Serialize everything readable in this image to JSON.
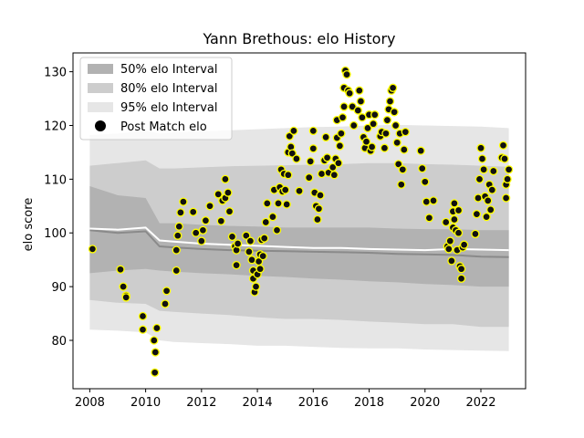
{
  "chart_data": {
    "type": "scatter",
    "title": "Yann Brethous: elo History",
    "xlabel": "",
    "ylabel": "elo score",
    "xlim": [
      2007.4,
      2023.6
    ],
    "ylim": [
      71,
      133.5
    ],
    "xticks": [
      2008,
      2010,
      2012,
      2014,
      2016,
      2018,
      2020,
      2022
    ],
    "yticks": [
      80,
      90,
      100,
      110,
      120,
      130
    ],
    "legend_position": "upper-left",
    "legend": [
      {
        "key": "band50",
        "label": "50% elo Interval",
        "color": "#b2b2b2"
      },
      {
        "key": "band80",
        "label": "80% elo Interval",
        "color": "#cdcdcd"
      },
      {
        "key": "band95",
        "label": "95% elo Interval",
        "color": "#e6e6e6"
      },
      {
        "key": "points",
        "label": "Post Match elo",
        "color": "#000000"
      }
    ],
    "colors": {
      "band50": "#b2b2b2",
      "band80": "#cdcdcd",
      "band95": "#e6e6e6",
      "median_line": "#8a8a8a",
      "mean_line": "#ffffff",
      "point_edge": "#ffff00",
      "point_fill": "#111111"
    },
    "bands": {
      "x": [
        2008,
        2009,
        2010,
        2010.5,
        2011,
        2012,
        2013,
        2014,
        2015,
        2016,
        2017,
        2018,
        2019,
        2020,
        2021,
        2022,
        2023
      ],
      "center": [
        100.5,
        100.0,
        100.3,
        97.5,
        97.3,
        97.0,
        96.8,
        96.7,
        96.6,
        96.5,
        96.4,
        96.3,
        96.1,
        96.0,
        95.9,
        95.6,
        95.5
      ],
      "mean": [
        100.8,
        100.6,
        101.0,
        98.6,
        98.4,
        98.0,
        97.8,
        97.6,
        97.4,
        97.2,
        97.2,
        97.0,
        96.9,
        96.8,
        97.0,
        96.9,
        96.8
      ],
      "band50_low": [
        92.5,
        93.0,
        93.3,
        93.0,
        92.8,
        92.5,
        92.3,
        92.0,
        91.8,
        91.5,
        91.3,
        91.0,
        90.8,
        90.5,
        90.3,
        90.0,
        90.0
      ],
      "band50_high": [
        108.7,
        107.0,
        106.5,
        101.8,
        101.8,
        101.5,
        101.3,
        101.2,
        101.0,
        101.0,
        101.0,
        101.0,
        100.8,
        100.7,
        100.7,
        100.5,
        100.5
      ],
      "band80_low": [
        87.5,
        87.0,
        86.8,
        85.5,
        85.3,
        85.0,
        84.7,
        84.3,
        84.0,
        84.0,
        83.8,
        83.5,
        83.3,
        83.0,
        83.0,
        82.5,
        82.5
      ],
      "band80_high": [
        112.5,
        113.0,
        113.5,
        112.0,
        112.0,
        112.2,
        112.4,
        112.5,
        112.6,
        112.7,
        112.8,
        113.0,
        113.0,
        112.8,
        112.7,
        112.5,
        112.3
      ],
      "band95_low": [
        82.0,
        81.8,
        81.5,
        80.0,
        79.7,
        79.5,
        79.3,
        79.0,
        79.0,
        78.8,
        78.6,
        78.5,
        78.5,
        78.3,
        78.2,
        78.1,
        78.0
      ],
      "band95_high": [
        118.2,
        118.5,
        119.0,
        118.5,
        118.7,
        118.9,
        119.1,
        119.3,
        119.5,
        119.7,
        119.8,
        120.0,
        120.1,
        120.0,
        119.9,
        119.8,
        119.5
      ]
    },
    "points": [
      {
        "x": 2008.1,
        "y": 97.0
      },
      {
        "x": 2009.1,
        "y": 93.2
      },
      {
        "x": 2009.2,
        "y": 90.0
      },
      {
        "x": 2009.3,
        "y": 88.3
      },
      {
        "x": 2009.3,
        "y": 88.0
      },
      {
        "x": 2009.9,
        "y": 84.5
      },
      {
        "x": 2009.9,
        "y": 82.0
      },
      {
        "x": 2010.3,
        "y": 80.0
      },
      {
        "x": 2010.35,
        "y": 77.8
      },
      {
        "x": 2010.4,
        "y": 82.3
      },
      {
        "x": 2010.33,
        "y": 74.0
      },
      {
        "x": 2010.7,
        "y": 86.8
      },
      {
        "x": 2010.75,
        "y": 89.2
      },
      {
        "x": 2011.1,
        "y": 93.0
      },
      {
        "x": 2011.1,
        "y": 96.8
      },
      {
        "x": 2011.15,
        "y": 99.5
      },
      {
        "x": 2011.2,
        "y": 101.2
      },
      {
        "x": 2011.25,
        "y": 103.8
      },
      {
        "x": 2011.35,
        "y": 105.8
      },
      {
        "x": 2011.7,
        "y": 103.9
      },
      {
        "x": 2011.8,
        "y": 100.0
      },
      {
        "x": 2012.0,
        "y": 98.5
      },
      {
        "x": 2012.05,
        "y": 100.5
      },
      {
        "x": 2012.15,
        "y": 102.3
      },
      {
        "x": 2012.3,
        "y": 105.0
      },
      {
        "x": 2012.6,
        "y": 107.2
      },
      {
        "x": 2012.7,
        "y": 102.2
      },
      {
        "x": 2012.75,
        "y": 106.0
      },
      {
        "x": 2012.85,
        "y": 110.0
      },
      {
        "x": 2012.85,
        "y": 106.5
      },
      {
        "x": 2012.95,
        "y": 107.5
      },
      {
        "x": 2013.0,
        "y": 104.0
      },
      {
        "x": 2013.1,
        "y": 99.3
      },
      {
        "x": 2013.2,
        "y": 97.5
      },
      {
        "x": 2013.25,
        "y": 96.8
      },
      {
        "x": 2013.25,
        "y": 94.0
      },
      {
        "x": 2013.3,
        "y": 98.0
      },
      {
        "x": 2013.6,
        "y": 99.5
      },
      {
        "x": 2013.7,
        "y": 96.5
      },
      {
        "x": 2013.75,
        "y": 98.5
      },
      {
        "x": 2013.8,
        "y": 95.0
      },
      {
        "x": 2013.85,
        "y": 93.0
      },
      {
        "x": 2013.85,
        "y": 91.5
      },
      {
        "x": 2013.9,
        "y": 89.0
      },
      {
        "x": 2013.95,
        "y": 90.0
      },
      {
        "x": 2014.0,
        "y": 92.3
      },
      {
        "x": 2014.05,
        "y": 94.7
      },
      {
        "x": 2014.1,
        "y": 93.3
      },
      {
        "x": 2014.1,
        "y": 96.0
      },
      {
        "x": 2014.15,
        "y": 98.7
      },
      {
        "x": 2014.2,
        "y": 95.7
      },
      {
        "x": 2014.25,
        "y": 99.0
      },
      {
        "x": 2014.3,
        "y": 102.0
      },
      {
        "x": 2014.35,
        "y": 105.5
      },
      {
        "x": 2014.55,
        "y": 103.0
      },
      {
        "x": 2014.6,
        "y": 108.0
      },
      {
        "x": 2014.7,
        "y": 100.5
      },
      {
        "x": 2014.75,
        "y": 105.5
      },
      {
        "x": 2014.8,
        "y": 108.5
      },
      {
        "x": 2014.85,
        "y": 111.8
      },
      {
        "x": 2014.9,
        "y": 107.7
      },
      {
        "x": 2014.95,
        "y": 111.0
      },
      {
        "x": 2015.0,
        "y": 108.0
      },
      {
        "x": 2015.05,
        "y": 105.3
      },
      {
        "x": 2015.1,
        "y": 110.8
      },
      {
        "x": 2015.1,
        "y": 115.0
      },
      {
        "x": 2015.15,
        "y": 118.0
      },
      {
        "x": 2015.2,
        "y": 116.0
      },
      {
        "x": 2015.25,
        "y": 114.8
      },
      {
        "x": 2015.3,
        "y": 119.0
      },
      {
        "x": 2015.4,
        "y": 113.8
      },
      {
        "x": 2015.5,
        "y": 107.8
      },
      {
        "x": 2015.85,
        "y": 110.3
      },
      {
        "x": 2015.9,
        "y": 113.3
      },
      {
        "x": 2016.0,
        "y": 115.7
      },
      {
        "x": 2016.0,
        "y": 119.0
      },
      {
        "x": 2016.05,
        "y": 107.5
      },
      {
        "x": 2016.1,
        "y": 105.0
      },
      {
        "x": 2016.15,
        "y": 102.5
      },
      {
        "x": 2016.2,
        "y": 104.5
      },
      {
        "x": 2016.25,
        "y": 107.0
      },
      {
        "x": 2016.3,
        "y": 111.0
      },
      {
        "x": 2016.4,
        "y": 113.5
      },
      {
        "x": 2016.45,
        "y": 117.8
      },
      {
        "x": 2016.5,
        "y": 114.0
      },
      {
        "x": 2016.55,
        "y": 111.2
      },
      {
        "x": 2016.7,
        "y": 112.2
      },
      {
        "x": 2016.75,
        "y": 110.8
      },
      {
        "x": 2016.8,
        "y": 113.8
      },
      {
        "x": 2016.85,
        "y": 117.7
      },
      {
        "x": 2016.85,
        "y": 121.0
      },
      {
        "x": 2016.9,
        "y": 113.0
      },
      {
        "x": 2016.95,
        "y": 116.2
      },
      {
        "x": 2017.0,
        "y": 118.5
      },
      {
        "x": 2017.05,
        "y": 121.5
      },
      {
        "x": 2017.1,
        "y": 123.5
      },
      {
        "x": 2017.1,
        "y": 127.0
      },
      {
        "x": 2017.15,
        "y": 130.2
      },
      {
        "x": 2017.2,
        "y": 129.5
      },
      {
        "x": 2017.25,
        "y": 126.5
      },
      {
        "x": 2017.3,
        "y": 126.0
      },
      {
        "x": 2017.4,
        "y": 123.5
      },
      {
        "x": 2017.45,
        "y": 120.0
      },
      {
        "x": 2017.6,
        "y": 122.8
      },
      {
        "x": 2017.65,
        "y": 126.5
      },
      {
        "x": 2017.7,
        "y": 124.5
      },
      {
        "x": 2017.75,
        "y": 121.5
      },
      {
        "x": 2017.8,
        "y": 117.8
      },
      {
        "x": 2017.85,
        "y": 115.8
      },
      {
        "x": 2017.9,
        "y": 117.0
      },
      {
        "x": 2017.95,
        "y": 119.5
      },
      {
        "x": 2018.0,
        "y": 122.0
      },
      {
        "x": 2018.05,
        "y": 115.3
      },
      {
        "x": 2018.1,
        "y": 116.0
      },
      {
        "x": 2018.15,
        "y": 120.3
      },
      {
        "x": 2018.2,
        "y": 122.0
      },
      {
        "x": 2018.4,
        "y": 118.0
      },
      {
        "x": 2018.45,
        "y": 118.8
      },
      {
        "x": 2018.55,
        "y": 115.8
      },
      {
        "x": 2018.6,
        "y": 118.5
      },
      {
        "x": 2018.65,
        "y": 121.0
      },
      {
        "x": 2018.7,
        "y": 123.0
      },
      {
        "x": 2018.75,
        "y": 124.5
      },
      {
        "x": 2018.8,
        "y": 126.5
      },
      {
        "x": 2018.85,
        "y": 127.0
      },
      {
        "x": 2018.9,
        "y": 122.5
      },
      {
        "x": 2018.95,
        "y": 120.0
      },
      {
        "x": 2019.0,
        "y": 116.8
      },
      {
        "x": 2019.05,
        "y": 112.8
      },
      {
        "x": 2019.1,
        "y": 118.5
      },
      {
        "x": 2019.15,
        "y": 109.0
      },
      {
        "x": 2019.2,
        "y": 111.8
      },
      {
        "x": 2019.25,
        "y": 115.5
      },
      {
        "x": 2019.3,
        "y": 118.8
      },
      {
        "x": 2019.85,
        "y": 115.3
      },
      {
        "x": 2019.9,
        "y": 112.0
      },
      {
        "x": 2020.0,
        "y": 109.5
      },
      {
        "x": 2020.05,
        "y": 105.8
      },
      {
        "x": 2020.15,
        "y": 102.8
      },
      {
        "x": 2020.3,
        "y": 106.0
      },
      {
        "x": 2020.75,
        "y": 102.0
      },
      {
        "x": 2020.8,
        "y": 97.5
      },
      {
        "x": 2020.85,
        "y": 97.0
      },
      {
        "x": 2020.9,
        "y": 98.5
      },
      {
        "x": 2020.95,
        "y": 94.8
      },
      {
        "x": 2021.0,
        "y": 101.0
      },
      {
        "x": 2021.0,
        "y": 104.0
      },
      {
        "x": 2021.05,
        "y": 105.5
      },
      {
        "x": 2021.05,
        "y": 102.5
      },
      {
        "x": 2021.1,
        "y": 100.5
      },
      {
        "x": 2021.15,
        "y": 96.8
      },
      {
        "x": 2021.2,
        "y": 104.2
      },
      {
        "x": 2021.2,
        "y": 100.0
      },
      {
        "x": 2021.25,
        "y": 93.8
      },
      {
        "x": 2021.3,
        "y": 91.5
      },
      {
        "x": 2021.3,
        "y": 93.3
      },
      {
        "x": 2021.35,
        "y": 97.3
      },
      {
        "x": 2021.4,
        "y": 97.8
      },
      {
        "x": 2021.8,
        "y": 99.8
      },
      {
        "x": 2021.85,
        "y": 103.5
      },
      {
        "x": 2021.9,
        "y": 106.5
      },
      {
        "x": 2021.95,
        "y": 110.0
      },
      {
        "x": 2022.0,
        "y": 115.8
      },
      {
        "x": 2022.05,
        "y": 113.8
      },
      {
        "x": 2022.1,
        "y": 111.8
      },
      {
        "x": 2022.15,
        "y": 106.8
      },
      {
        "x": 2022.2,
        "y": 103.0
      },
      {
        "x": 2022.25,
        "y": 106.0
      },
      {
        "x": 2022.3,
        "y": 109.0
      },
      {
        "x": 2022.35,
        "y": 104.3
      },
      {
        "x": 2022.4,
        "y": 108.0
      },
      {
        "x": 2022.45,
        "y": 111.5
      },
      {
        "x": 2022.75,
        "y": 114.0
      },
      {
        "x": 2022.8,
        "y": 116.3
      },
      {
        "x": 2022.85,
        "y": 113.8
      },
      {
        "x": 2022.9,
        "y": 109.0
      },
      {
        "x": 2022.9,
        "y": 106.5
      },
      {
        "x": 2022.95,
        "y": 110.0
      },
      {
        "x": 2023.0,
        "y": 111.8
      }
    ]
  }
}
